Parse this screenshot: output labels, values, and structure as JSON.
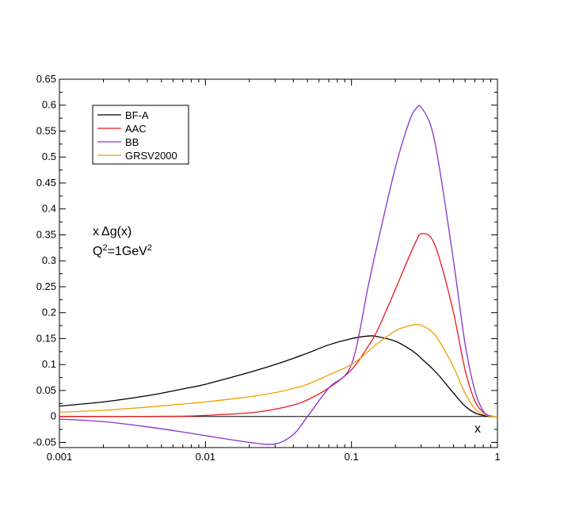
{
  "chart_data": {
    "type": "line",
    "title": "",
    "xlabel": "x",
    "ylabel": "",
    "xscale": "log",
    "xlim": [
      0.001,
      1
    ],
    "ylim": [
      -0.06,
      0.65
    ],
    "grid": false,
    "legend_position": "top-left",
    "x_ticks": [
      0.001,
      0.01,
      0.1,
      1
    ],
    "x_tick_labels": [
      "0.001",
      "0.01",
      "0.1",
      "1"
    ],
    "y_ticks": [
      -0.05,
      0,
      0.05,
      0.1,
      0.15,
      0.2,
      0.25,
      0.3,
      0.35,
      0.4,
      0.45,
      0.5,
      0.55,
      0.6,
      0.65
    ],
    "y_tick_labels": [
      "-0.05",
      "0",
      "0.05",
      "0.1",
      "0.15",
      "0.2",
      "0.25",
      "0.3",
      "0.35",
      "0.4",
      "0.45",
      "0.5",
      "0.55",
      "0.6",
      "0.65"
    ],
    "annotations": {
      "prefix": "x",
      "delta": "Δ",
      "func": "g(x)",
      "q_label": "Q",
      "exp1": "2",
      "mid": "=1GeV",
      "exp2": "2"
    },
    "x": [
      0.001,
      0.002,
      0.004,
      0.007,
      0.01,
      0.02,
      0.03,
      0.04,
      0.05,
      0.07,
      0.1,
      0.13,
      0.15,
      0.2,
      0.25,
      0.28,
      0.3,
      0.35,
      0.4,
      0.5,
      0.6,
      0.7,
      0.8,
      0.9,
      1.0
    ],
    "series": [
      {
        "name": "BF-A",
        "color": "#000000",
        "values": [
          0.02,
          0.028,
          0.04,
          0.053,
          0.062,
          0.085,
          0.1,
          0.112,
          0.122,
          0.138,
          0.15,
          0.155,
          0.154,
          0.145,
          0.13,
          0.12,
          0.112,
          0.095,
          0.078,
          0.045,
          0.02,
          0.007,
          0.002,
          0.0002,
          0.0
        ]
      },
      {
        "name": "AAC",
        "color": "#e8181e",
        "values": [
          0.0,
          0.0,
          0.0,
          0.0005,
          0.002,
          0.007,
          0.014,
          0.022,
          0.032,
          0.055,
          0.09,
          0.135,
          0.165,
          0.245,
          0.31,
          0.34,
          0.352,
          0.345,
          0.305,
          0.2,
          0.09,
          0.03,
          0.008,
          0.001,
          0.0
        ]
      },
      {
        "name": "BB",
        "color": "#8a30c8",
        "values": [
          -0.005,
          -0.01,
          -0.02,
          -0.03,
          -0.037,
          -0.05,
          -0.053,
          -0.035,
          0.0,
          0.055,
          0.1,
          0.25,
          0.33,
          0.48,
          0.57,
          0.595,
          0.596,
          0.56,
          0.48,
          0.3,
          0.14,
          0.05,
          0.01,
          0.001,
          0.0
        ]
      },
      {
        "name": "GRSV2000",
        "color": "#f0a000",
        "values": [
          0.008,
          0.012,
          0.018,
          0.024,
          0.028,
          0.038,
          0.046,
          0.054,
          0.062,
          0.08,
          0.1,
          0.125,
          0.14,
          0.165,
          0.175,
          0.177,
          0.176,
          0.165,
          0.145,
          0.095,
          0.045,
          0.015,
          0.004,
          0.0005,
          0.0
        ]
      }
    ]
  }
}
